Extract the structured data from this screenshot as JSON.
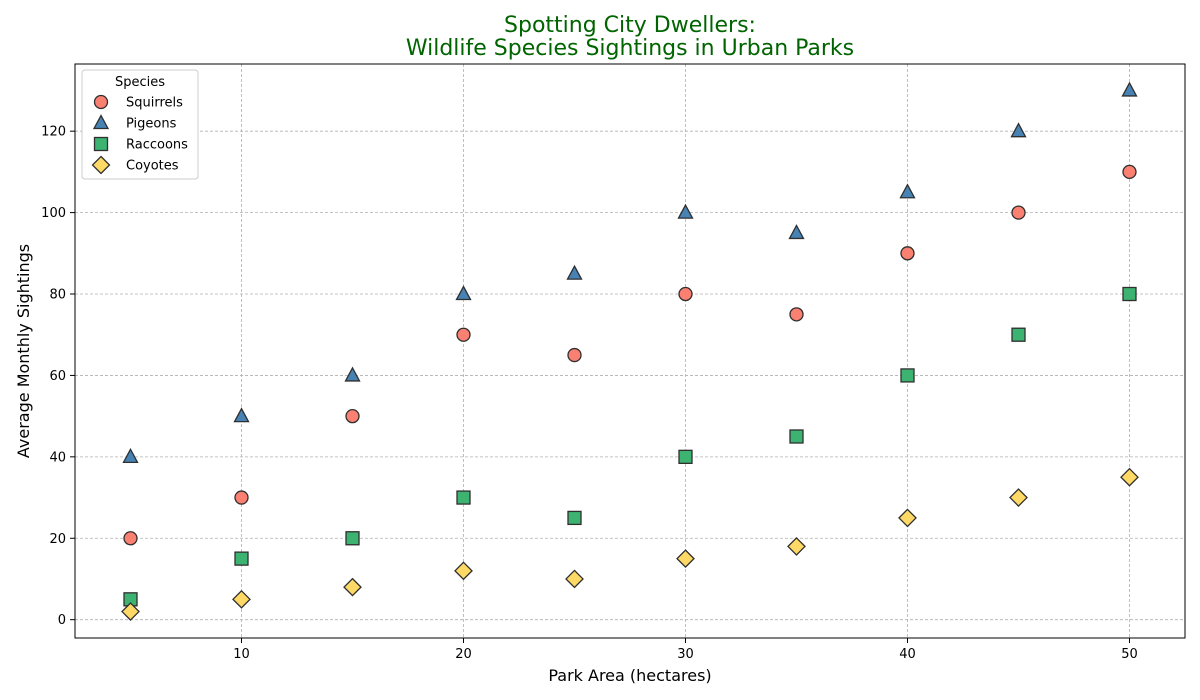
{
  "chart_data": {
    "type": "scatter",
    "title": [
      "Spotting City Dwellers:",
      "Wildlife Species Sightings in Urban Parks"
    ],
    "title_color": "#006400",
    "xlabel": "Park Area (hectares)",
    "ylabel": "Average Monthly Sightings",
    "xlim": [
      2.5,
      52.5
    ],
    "ylim": [
      -4.5,
      136.5
    ],
    "xticks": [
      10,
      20,
      30,
      40,
      50
    ],
    "yticks": [
      0,
      20,
      40,
      60,
      80,
      100,
      120
    ],
    "grid": true,
    "legend": {
      "title": "Species",
      "position": "top-left"
    },
    "x": [
      5,
      10,
      15,
      20,
      25,
      30,
      35,
      40,
      45,
      50
    ],
    "series": [
      {
        "name": "Squirrels",
        "marker": "circle",
        "color": "#FA8072",
        "values": [
          20,
          30,
          50,
          70,
          65,
          80,
          75,
          90,
          100,
          110
        ]
      },
      {
        "name": "Pigeons",
        "marker": "triangle",
        "color": "#4682B4",
        "values": [
          40,
          50,
          60,
          80,
          85,
          100,
          95,
          105,
          120,
          130
        ]
      },
      {
        "name": "Raccoons",
        "marker": "square",
        "color": "#3CB371",
        "values": [
          5,
          15,
          20,
          30,
          25,
          40,
          45,
          60,
          70,
          80
        ]
      },
      {
        "name": "Coyotes",
        "marker": "diamond",
        "color": "#FFD966",
        "values": [
          2,
          5,
          8,
          12,
          10,
          15,
          18,
          25,
          30,
          35
        ]
      }
    ]
  }
}
